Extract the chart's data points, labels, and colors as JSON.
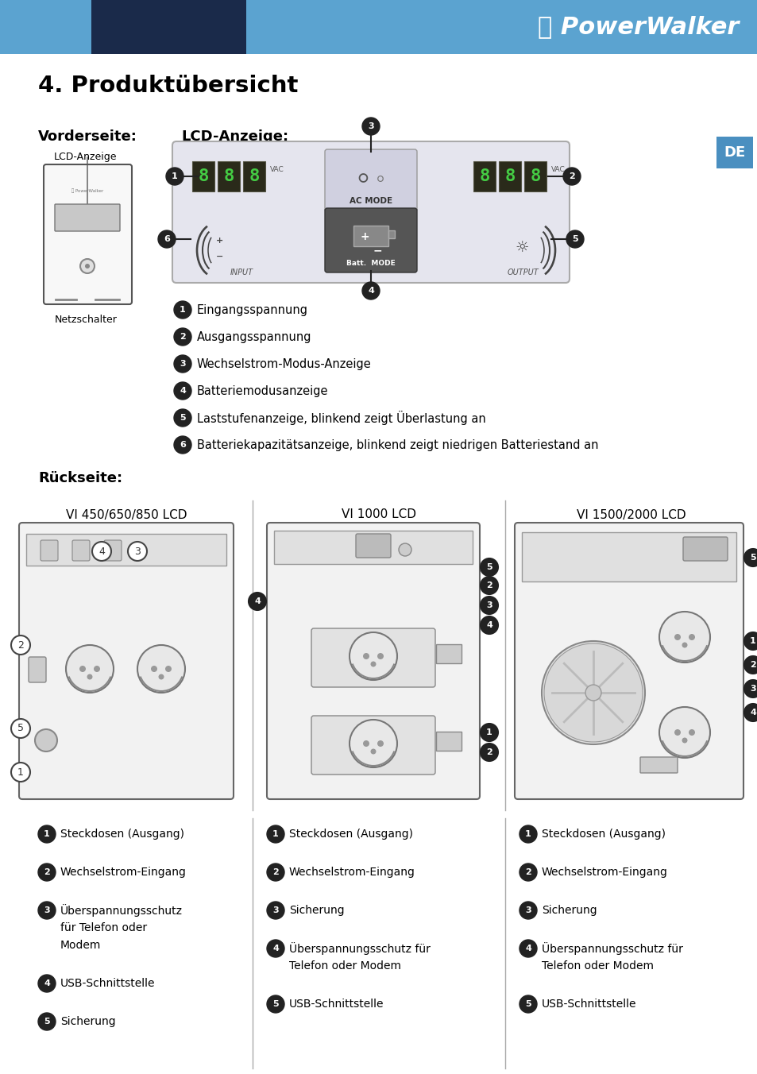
{
  "title": "4. Produktübersicht",
  "bg_color": "#ffffff",
  "header_bar_color": "#5ba3d0",
  "header_dark_color": "#1a2a4a",
  "de_badge_color": "#4a8fc0",
  "de_badge_text": "DE",
  "section1_label": "Vorderseite:",
  "section2_label": "LCD-Anzeige:",
  "front_label_top": "LCD-Anzeige",
  "front_label_bot": "Netzschalter",
  "lcd_items": [
    {
      "num": "1",
      "text": "Eingangsspannung"
    },
    {
      "num": "2",
      "text": "Ausgangsspannung"
    },
    {
      "num": "3",
      "text": "Wechselstrom-Modus-Anzeige"
    },
    {
      "num": "4",
      "text": "Batteriemodusanzeige"
    },
    {
      "num": "5",
      "text": "Laststufenanzeige, blinkend zeigt Überlastung an"
    },
    {
      "num": "6",
      "text": "Batteriekapazitätsanzeige, blinkend zeigt niedrigen Batteriestand an"
    }
  ],
  "rueckseite_label": "Rückseite:",
  "back_sections": [
    {
      "title": "VI 450/650/850 LCD",
      "items": [
        {
          "num": "1",
          "text": "Steckdosen (Ausgang)"
        },
        {
          "num": "2",
          "text": "Wechselstrom-Eingang"
        },
        {
          "num": "3",
          "text": "Überspannungsschutz\nfür Telefon oder\nModem"
        },
        {
          "num": "4",
          "text": "USB-Schnittstelle"
        },
        {
          "num": "5",
          "text": "Sicherung"
        }
      ]
    },
    {
      "title": "VI 1000 LCD",
      "items": [
        {
          "num": "1",
          "text": "Steckdosen (Ausgang)"
        },
        {
          "num": "2",
          "text": "Wechselstrom-Eingang"
        },
        {
          "num": "3",
          "text": "Sicherung"
        },
        {
          "num": "4",
          "text": "Überspannungsschutz für\nTelefon oder Modem"
        },
        {
          "num": "5",
          "text": "USB-Schnittstelle"
        }
      ]
    },
    {
      "title": "VI 1500/2000 LCD",
      "items": [
        {
          "num": "1",
          "text": "Steckdosen (Ausgang)"
        },
        {
          "num": "2",
          "text": "Wechselstrom-Eingang"
        },
        {
          "num": "3",
          "text": "Sicherung"
        },
        {
          "num": "4",
          "text": "Überspannungsschutz für\nTelefon oder Modem"
        },
        {
          "num": "5",
          "text": "USB-Schnittstelle"
        }
      ]
    }
  ],
  "col_divider1": 318,
  "col_divider2": 636,
  "text_color": "#000000",
  "divider_color": "#aaaaaa"
}
